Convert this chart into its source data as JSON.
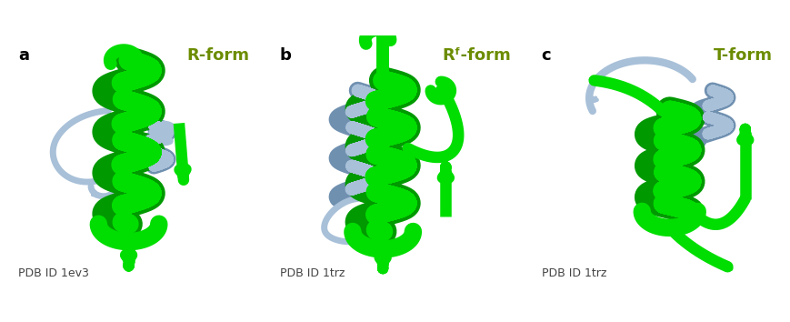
{
  "panels": [
    {
      "label": "a",
      "title": "R-form",
      "pdb_id": "PDB ID 1ev3"
    },
    {
      "label": "b",
      "title": "Rᶠ-form",
      "pdb_id": "PDB ID 1trz"
    },
    {
      "label": "c",
      "title": "T-form",
      "pdb_id": "PDB ID 1trz"
    }
  ],
  "green": "#00dd00",
  "green_dark": "#009900",
  "blue": "#a8c0d8",
  "blue_dark": "#7090b0",
  "title_color": "#6b8c00",
  "label_color": "#000000",
  "pdb_color": "#444444",
  "bg_color": "#ffffff",
  "border_color": "#aaaaaa",
  "title_fontsize": 13,
  "label_fontsize": 13,
  "pdb_fontsize": 9,
  "fig_width": 8.7,
  "fig_height": 3.54
}
